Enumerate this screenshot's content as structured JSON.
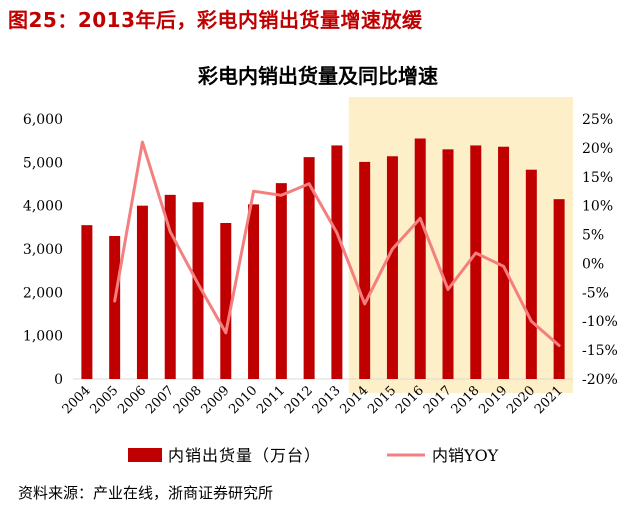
{
  "figure": {
    "title": "图25：2013年后，彩电内销出货量增速放缓",
    "source": "资料来源：产业在线，浙商证券研究所"
  },
  "colors": {
    "bar": "#c00000",
    "line": "#f47f7f",
    "highlight": "#fdefc7",
    "title": "#c00000"
  },
  "chart_data": {
    "type": "bar",
    "title": "彩电内销出货量及同比增速",
    "categories": [
      "2004",
      "2005",
      "2006",
      "2007",
      "2008",
      "2009",
      "2010",
      "2011",
      "2012",
      "2013",
      "2014",
      "2015",
      "2016",
      "2017",
      "2018",
      "2019",
      "2020",
      "2021"
    ],
    "series": [
      {
        "name": "内销出货量（万台）",
        "type": "bar",
        "axis": "left",
        "values": [
          3550,
          3300,
          4000,
          4250,
          4080,
          3600,
          4030,
          4520,
          5120,
          5390,
          5010,
          5140,
          5550,
          5300,
          5390,
          5360,
          4830,
          4150
        ]
      },
      {
        "name": "内销YOY",
        "type": "line",
        "axis": "right",
        "values": [
          null,
          -6.5,
          21.0,
          5.5,
          -3.5,
          -12.0,
          12.5,
          11.8,
          13.8,
          5.3,
          -7.0,
          2.5,
          7.8,
          -4.5,
          1.8,
          -0.5,
          -10.0,
          -14.2
        ]
      }
    ],
    "y_left": {
      "ylim": [
        0,
        6000
      ],
      "ticks": [
        "0",
        "1,000",
        "2,000",
        "3,000",
        "4,000",
        "5,000",
        "6,000"
      ]
    },
    "y_right": {
      "ylim": [
        -20,
        25
      ],
      "ticks": [
        "-20%",
        "-15%",
        "-10%",
        "-5%",
        "0%",
        "5%",
        "10%",
        "15%",
        "20%",
        "25%"
      ]
    },
    "highlight_range": [
      "2014",
      "2021"
    ],
    "legend": [
      "内销出货量（万台）",
      "内销YOY"
    ],
    "legend_position": "bottom"
  }
}
